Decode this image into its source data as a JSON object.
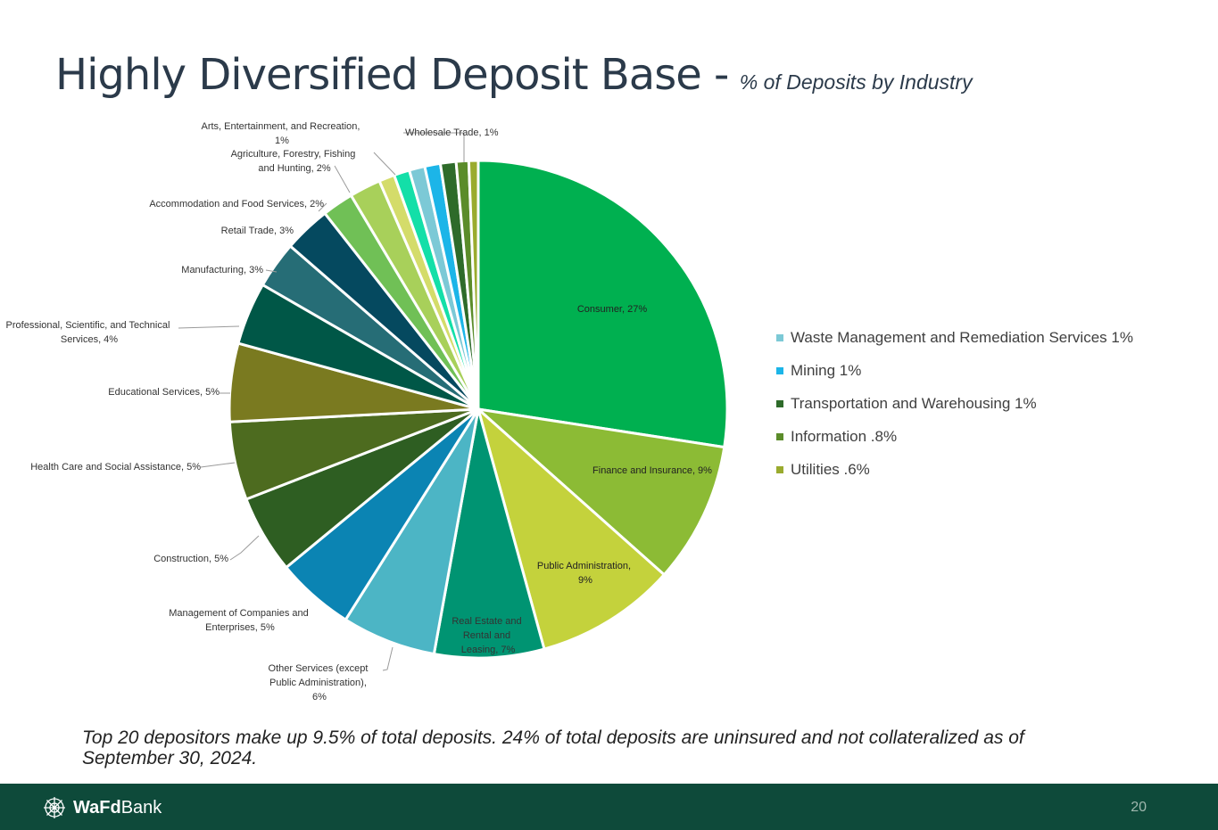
{
  "header": {
    "title": "Highly Diversified Deposit Base -",
    "subtitle": "% of Deposits by Industry"
  },
  "chart_data": {
    "type": "pie",
    "title": "",
    "start_angle_deg": 0,
    "direction": "clockwise",
    "slices": [
      {
        "label": "Consumer, 27%",
        "value": 27,
        "color": "#00b050"
      },
      {
        "label": "Finance and Insurance, 9%",
        "value": 9,
        "color": "#8cbb35"
      },
      {
        "label": "Public Administration, 9%",
        "value": 9,
        "color": "#c4d23c"
      },
      {
        "label": "Real Estate and Rental and Leasing, 7%",
        "value": 7,
        "color": "#009472"
      },
      {
        "label": "Other Services (except Public Administration), 6%",
        "value": 6,
        "color": "#4cb5c5"
      },
      {
        "label": "Management of Companies and Enterprises, 5%",
        "value": 5,
        "color": "#0b84b3"
      },
      {
        "label": "Construction, 5%",
        "value": 5,
        "color": "#2e5e22"
      },
      {
        "label": "Health Care and Social Assistance, 5%",
        "value": 5,
        "color": "#4d6b1f"
      },
      {
        "label": "Educational Services, 5%",
        "value": 5,
        "color": "#7a7a20"
      },
      {
        "label": "Professional, Scientific, and Technical Services, 4%",
        "value": 4,
        "color": "#005747"
      },
      {
        "label": "Manufacturing, 3%",
        "value": 3,
        "color": "#266d76"
      },
      {
        "label": "Retail Trade, 3%",
        "value": 3,
        "color": "#05495f"
      },
      {
        "label": "Accommodation and Food Services, 2%",
        "value": 2,
        "color": "#70c056"
      },
      {
        "label": "Agriculture, Forestry, Fishing and Hunting, 2%",
        "value": 2,
        "color": "#a8d05a"
      },
      {
        "label": "Arts, Entertainment, and Recreation, 1%",
        "value": 1,
        "color": "#d4dc6a"
      },
      {
        "label": "Wholesale Trade, 1%",
        "value": 1,
        "color": "#13dfa8"
      },
      {
        "label": "Waste Management and Remediation Services 1%",
        "value": 1,
        "color": "#7cc9d6"
      },
      {
        "label": "Mining 1%",
        "value": 1,
        "color": "#1cb5e8"
      },
      {
        "label": "Transportation and Warehousing 1%",
        "value": 1,
        "color": "#2e6b2a"
      },
      {
        "label": "Information .8%",
        "value": 0.8,
        "color": "#5b8c2a"
      },
      {
        "label": "Utilities .6%",
        "value": 0.6,
        "color": "#9aab2e"
      }
    ],
    "legend_placement": "right",
    "legend": [
      "Waste Management and Remediation Services 1%",
      "Mining 1%",
      "Transportation and Warehousing 1%",
      "Information .8%",
      "Utilities .6%"
    ]
  },
  "slice_labels": {
    "consumer": "Consumer, 27%",
    "finance": "Finance and Insurance, 9%",
    "public_admin": [
      "Public Administration,",
      "9%"
    ],
    "real_estate": [
      "Real Estate and",
      "Rental and",
      "Leasing, 7%"
    ],
    "other_services": [
      "Other Services (except",
      "Public Administration),",
      "6%"
    ],
    "management": [
      "Management of Companies and",
      "Enterprises, 5%"
    ],
    "construction": "Construction, 5%",
    "health_care": "Health Care and Social Assistance, 5%",
    "educational": "Educational Services, 5%",
    "professional": [
      "Professional, Scientific, and Technical",
      "Services, 4%"
    ],
    "manufacturing": "Manufacturing, 3%",
    "retail": "Retail Trade, 3%",
    "accommodation": "Accommodation and Food Services, 2%",
    "agriculture": [
      "Agriculture, Forestry, Fishing",
      "and Hunting, 2%"
    ],
    "arts": [
      "Arts, Entertainment, and Recreation,",
      "1%"
    ],
    "wholesale": "Wholesale Trade, 1%"
  },
  "footnote": "Top 20 depositors make up 9.5% of total deposits.  24% of total deposits are uninsured and not collateralized as of September 30, 2024.",
  "footer": {
    "logo_bold": "WaFd",
    "logo_regular": "Bank",
    "page_number": "20"
  }
}
